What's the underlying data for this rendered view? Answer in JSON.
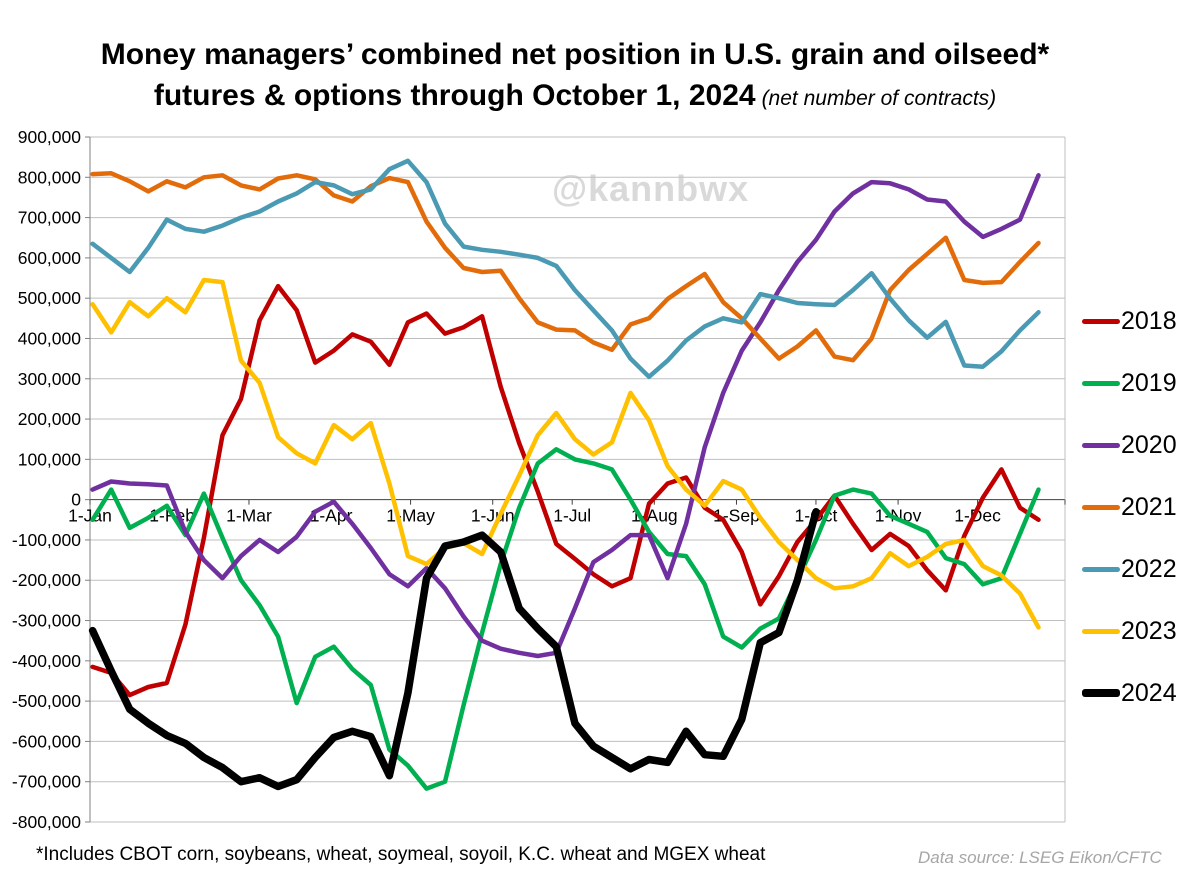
{
  "title": {
    "line1": "Money managers’ combined net position in U.S. grain and oilseed*",
    "line2": "futures & options through October 1, 2024",
    "subtitle": "(net number of contracts)"
  },
  "watermark": "@kannbwx",
  "footnote": "*Includes CBOT corn, soybeans, wheat, soymeal, soyoil, K.C. wheat and MGEX wheat",
  "data_source": "Data source: LSEG Eikon/CFTC",
  "chart_data": {
    "type": "line",
    "title": "Money managers’ combined net position in U.S. grain and oilseed futures & options through October 1, 2024",
    "ylabel": "net number of contracts",
    "ylim": [
      -800000,
      900000
    ],
    "y_ticks": [
      900000,
      800000,
      700000,
      600000,
      500000,
      400000,
      300000,
      200000,
      100000,
      0,
      -100000,
      -200000,
      -300000,
      -400000,
      -500000,
      -600000,
      -700000,
      -800000
    ],
    "x_ticks": [
      {
        "label": "1-Jan",
        "day": 0
      },
      {
        "label": "1-Feb",
        "day": 31
      },
      {
        "label": "1-Mar",
        "day": 60
      },
      {
        "label": "1-Apr",
        "day": 91
      },
      {
        "label": "1-May",
        "day": 121
      },
      {
        "label": "1-Jun",
        "day": 152
      },
      {
        "label": "1-Jul",
        "day": 182
      },
      {
        "label": "1-Aug",
        "day": 213
      },
      {
        "label": "1-Sep",
        "day": 244
      },
      {
        "label": "1-Oct",
        "day": 274
      },
      {
        "label": "1-Nov",
        "day": 305
      },
      {
        "label": "1-Dec",
        "day": 335
      }
    ],
    "x_domain_days": [
      0,
      368
    ],
    "sampling": "weekly; observation i is at day 1 + 7*i",
    "grid": true,
    "legend_position": "right",
    "series": [
      {
        "name": "2018",
        "color": "#c00000",
        "width": 4.5,
        "values": [
          -415000,
          -430000,
          -485000,
          -465000,
          -455000,
          -310000,
          -95000,
          160000,
          250000,
          445000,
          530000,
          470000,
          340000,
          370000,
          410000,
          392000,
          335000,
          440000,
          462000,
          412000,
          428000,
          455000,
          280000,
          140000,
          20000,
          -110000,
          -147000,
          -185000,
          -215000,
          -195000,
          -10000,
          40000,
          55000,
          -20000,
          -50000,
          -130000,
          -260000,
          -190000,
          -105000,
          -50000,
          10000,
          -60000,
          -125000,
          -85000,
          -115000,
          -175000,
          -225000,
          -90000,
          5000,
          75000,
          -20000,
          -50000
        ]
      },
      {
        "name": "2019",
        "color": "#00b050",
        "width": 4.5,
        "values": [
          -50000,
          25000,
          -70000,
          -45000,
          -15000,
          -88000,
          15000,
          -95000,
          -200000,
          -262000,
          -340000,
          -505000,
          -390000,
          -365000,
          -420000,
          -460000,
          -620000,
          -660000,
          -717000,
          -700000,
          -510000,
          -330000,
          -160000,
          -20000,
          90000,
          125000,
          100000,
          90000,
          75000,
          0,
          -80000,
          -135000,
          -140000,
          -210000,
          -340000,
          -367000,
          -320000,
          -295000,
          -200000,
          -100000,
          10000,
          25000,
          15000,
          -40000,
          -60000,
          -80000,
          -145000,
          -160000,
          -210000,
          -195000,
          -85000,
          25000
        ]
      },
      {
        "name": "2020",
        "color": "#7030a0",
        "width": 4.5,
        "values": [
          25000,
          45000,
          40000,
          38000,
          35000,
          -80000,
          -150000,
          -195000,
          -140000,
          -100000,
          -130000,
          -92000,
          -30000,
          -5000,
          -60000,
          -120000,
          -185000,
          -215000,
          -170000,
          -220000,
          -290000,
          -350000,
          -370000,
          -380000,
          -388000,
          -380000,
          -270000,
          -155000,
          -125000,
          -88000,
          -88000,
          -195000,
          -60000,
          130000,
          265000,
          370000,
          440000,
          520000,
          590000,
          645000,
          715000,
          760000,
          788000,
          785000,
          770000,
          745000,
          740000,
          690000,
          652000,
          672000,
          695000,
          805000
        ]
      },
      {
        "name": "2021",
        "color": "#e36c0a",
        "width": 4.5,
        "values": [
          808000,
          810000,
          790000,
          765000,
          790000,
          775000,
          800000,
          805000,
          780000,
          770000,
          797000,
          805000,
          795000,
          755000,
          740000,
          778000,
          798000,
          788000,
          690000,
          625000,
          575000,
          565000,
          568000,
          500000,
          440000,
          422000,
          420000,
          390000,
          372000,
          435000,
          450000,
          498000,
          530000,
          560000,
          490000,
          450000,
          400000,
          350000,
          380000,
          420000,
          355000,
          346000,
          400000,
          520000,
          570000,
          610000,
          650000,
          545000,
          538000,
          540000,
          590000,
          637000
        ]
      },
      {
        "name": "2022",
        "color": "#4a9ab4",
        "width": 4.5,
        "values": [
          635000,
          600000,
          565000,
          625000,
          695000,
          672000,
          665000,
          680000,
          700000,
          715000,
          740000,
          760000,
          788000,
          780000,
          758000,
          770000,
          820000,
          841000,
          788000,
          685000,
          628000,
          620000,
          615000,
          608000,
          600000,
          580000,
          520000,
          470000,
          420000,
          350000,
          305000,
          345000,
          395000,
          430000,
          450000,
          440000,
          510000,
          500000,
          488000,
          485000,
          483000,
          520000,
          562000,
          499000,
          445000,
          402000,
          441000,
          333000,
          330000,
          368000,
          420000,
          465000
        ]
      },
      {
        "name": "2023",
        "color": "#ffc000",
        "width": 4.5,
        "values": [
          485000,
          415000,
          490000,
          455000,
          500000,
          465000,
          545000,
          540000,
          345000,
          290000,
          155000,
          115000,
          90000,
          185000,
          150000,
          190000,
          40000,
          -140000,
          -160000,
          -120000,
          -108000,
          -135000,
          -35000,
          60000,
          160000,
          215000,
          150000,
          112000,
          142000,
          265000,
          197000,
          83000,
          25000,
          -15000,
          46000,
          25000,
          -45000,
          -105000,
          -150000,
          -195000,
          -220000,
          -215000,
          -195000,
          -133000,
          -165000,
          -142000,
          -110000,
          -100000,
          -165000,
          -188000,
          -233000,
          -317000
        ]
      },
      {
        "name": "2024",
        "color": "#000000",
        "width": 7.5,
        "values": [
          -325000,
          -425000,
          -520000,
          -555000,
          -585000,
          -605000,
          -640000,
          -665000,
          -700000,
          -690000,
          -712000,
          -695000,
          -640000,
          -590000,
          -575000,
          -588000,
          -685000,
          -480000,
          -195000,
          -115000,
          -105000,
          -88000,
          -130000,
          -270000,
          -320000,
          -365000,
          -555000,
          -612000,
          -640000,
          -668000,
          -645000,
          -652000,
          -575000,
          -633000,
          -637000,
          -545000,
          -355000,
          -330000,
          -200000,
          -30000
        ]
      }
    ]
  }
}
